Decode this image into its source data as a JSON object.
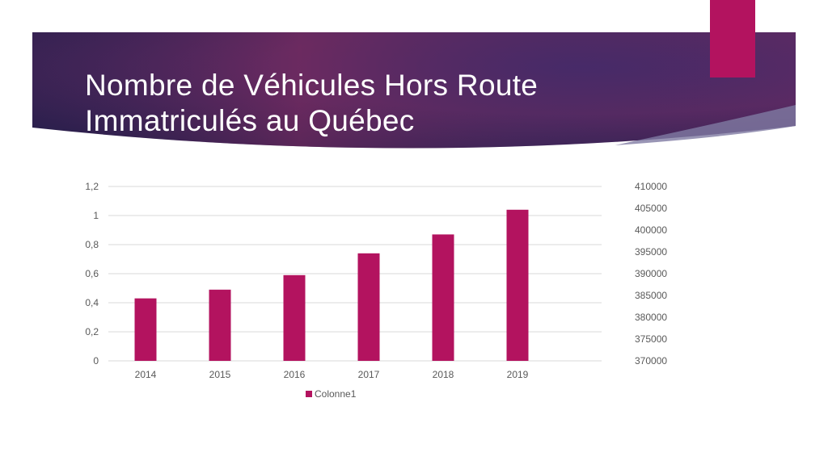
{
  "slide": {
    "title_line1": "Nombre de Véhicules Hors Route",
    "title_line2": "Immatriculés au Québec"
  },
  "colors": {
    "header_dark": "#2b1f4e",
    "header_mid": "#5a2a63",
    "accent": "#b3135f",
    "bar": "#b3135f",
    "grid": "#d9d9d9",
    "tick_text": "#595959"
  },
  "chart_data": {
    "type": "bar",
    "title": "",
    "xlabel": "",
    "ylabel": "",
    "categories": [
      "2014",
      "2015",
      "2016",
      "2017",
      "2018",
      "2019"
    ],
    "series": [
      {
        "name": "Colonne1",
        "axis": "left",
        "values": [
          0.43,
          0.49,
          0.59,
          0.74,
          0.87,
          1.04
        ]
      }
    ],
    "ylim": [
      0,
      1.2
    ],
    "y_ticks": [
      "0",
      "0,2",
      "0,4",
      "0,6",
      "0,8",
      "1",
      "1,2"
    ],
    "y2lim": [
      370000,
      410000
    ],
    "y2_ticks": [
      "370000",
      "375000",
      "380000",
      "385000",
      "390000",
      "395000",
      "400000",
      "405000",
      "410000"
    ],
    "grid": true,
    "legend_position": "bottom"
  }
}
